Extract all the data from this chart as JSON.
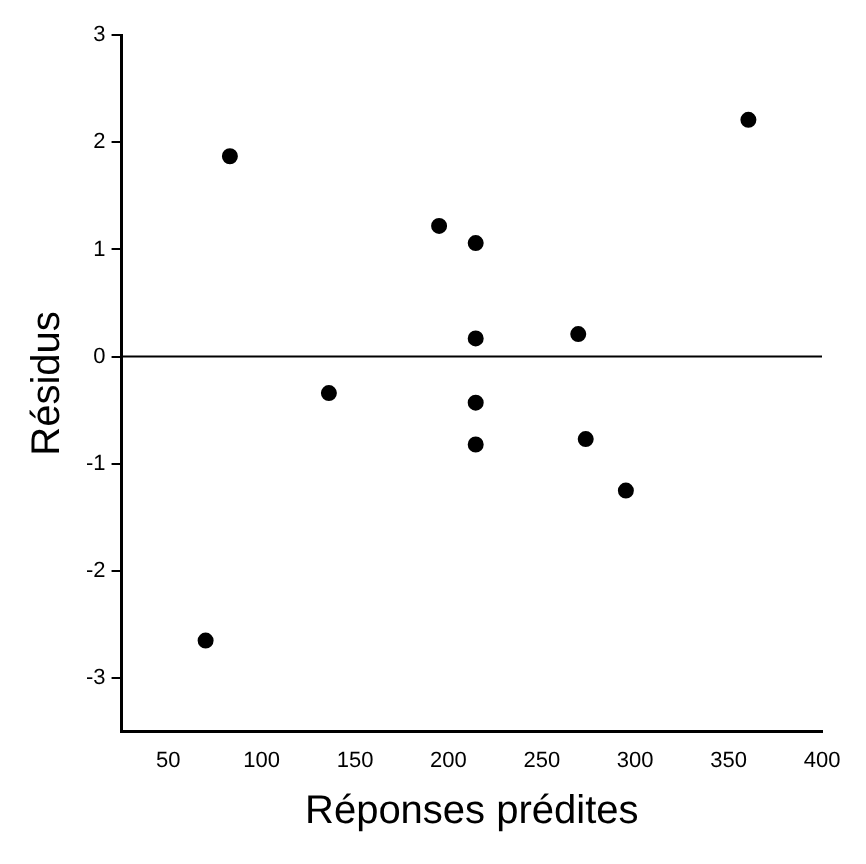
{
  "chart_data": {
    "type": "scatter",
    "xlabel": "Réponses prédites",
    "ylabel": "Résidus",
    "x": [
      70,
      83,
      136,
      195,
      214.6,
      214.6,
      214.6,
      214.6,
      269.5,
      273.5,
      295,
      360.6
    ],
    "values": [
      -2.65,
      1.87,
      -0.34,
      1.22,
      1.06,
      0.17,
      -0.43,
      -0.82,
      0.21,
      -0.77,
      -1.25,
      2.21
    ],
    "color": "#000000",
    "marker": "circle",
    "xlim": [
      25,
      400
    ],
    "xticks": [
      50,
      100,
      150,
      200,
      250,
      300,
      350,
      400
    ],
    "ylim": [
      -3.5,
      3
    ],
    "yticks": [
      -3,
      -2,
      -1,
      0,
      1,
      2,
      3
    ],
    "ref_lines": [
      {
        "axis": "y",
        "value": 0,
        "color": "#000000"
      }
    ],
    "grid": false,
    "legend": false
  }
}
